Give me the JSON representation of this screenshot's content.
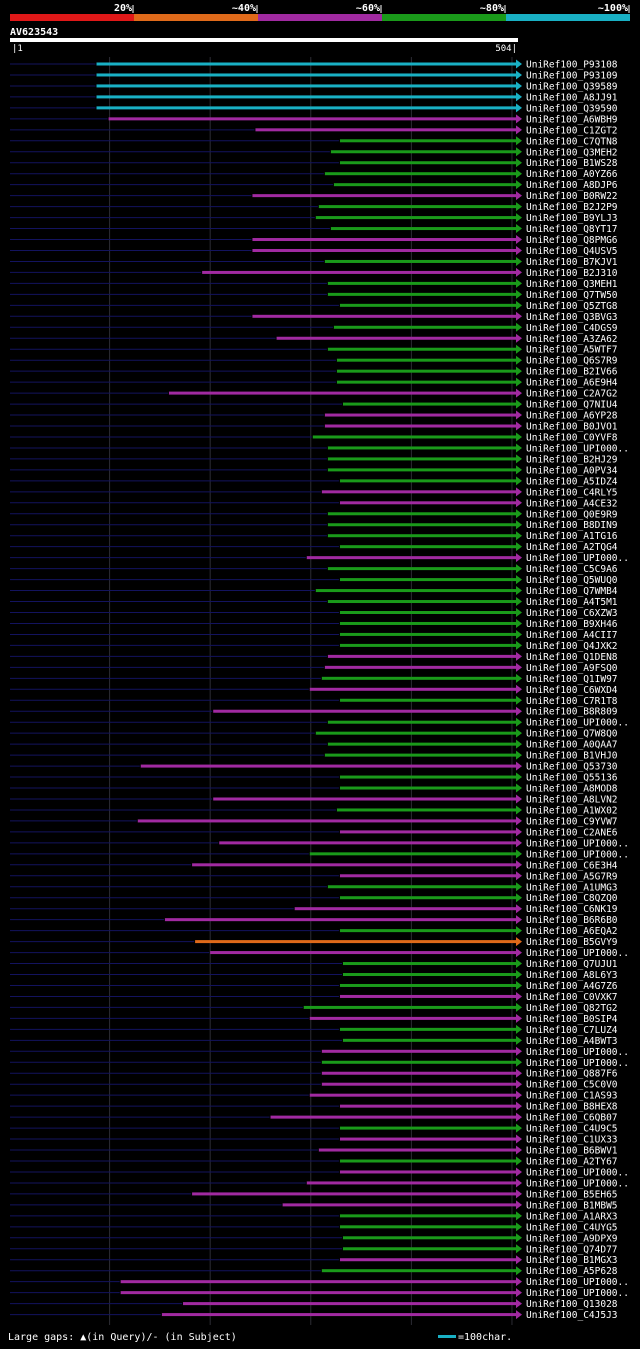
{
  "chart_data": {
    "type": "alignment-overview",
    "query_id": "AV623543",
    "axis": {
      "start": 1,
      "end": 504
    },
    "legend": {
      "ticks": [
        "20%",
        "~40%",
        "~60%",
        "~80%",
        "~100%"
      ],
      "colors": [
        "#e01818",
        "#e06a1a",
        "#a12aa1",
        "#1a9a1a",
        "#19b0c4"
      ]
    },
    "footer": {
      "gaps": "Large gaps: ▲(in Query)/- (in Subject)",
      "scale": "=100char."
    },
    "hits": [
      {
        "name": "UniRef100_P93108",
        "start": 87,
        "cov": "~100%"
      },
      {
        "name": "UniRef100_P93109",
        "start": 87,
        "cov": "~100%"
      },
      {
        "name": "UniRef100_Q39589",
        "start": 87,
        "cov": "~100%"
      },
      {
        "name": "UniRef100_A8JJ91",
        "start": 87,
        "cov": "~100%"
      },
      {
        "name": "UniRef100_Q39590",
        "start": 87,
        "cov": "~100%"
      },
      {
        "name": "UniRef100_A6WBH9",
        "start": 99,
        "cov": "~60%"
      },
      {
        "name": "UniRef100_C1ZGT2",
        "start": 245,
        "cov": "~60%"
      },
      {
        "name": "UniRef100_C7QTN8",
        "start": 329,
        "cov": "~80%"
      },
      {
        "name": "UniRef100_Q3MEH2",
        "start": 320,
        "cov": "~80%"
      },
      {
        "name": "UniRef100_B1WS28",
        "start": 329,
        "cov": "~80%"
      },
      {
        "name": "UniRef100_A0YZ66",
        "start": 314,
        "cov": "~80%"
      },
      {
        "name": "UniRef100_A8DJP6",
        "start": 323,
        "cov": "~80%"
      },
      {
        "name": "UniRef100_B0RW22",
        "start": 242,
        "cov": "~60%"
      },
      {
        "name": "UniRef100_B2J2P9",
        "start": 308,
        "cov": "~80%"
      },
      {
        "name": "UniRef100_B9YLJ3",
        "start": 305,
        "cov": "~80%"
      },
      {
        "name": "UniRef100_Q8YT17",
        "start": 320,
        "cov": "~80%"
      },
      {
        "name": "UniRef100_Q8PMG6",
        "start": 242,
        "cov": "~60%"
      },
      {
        "name": "UniRef100_Q4USV5",
        "start": 242,
        "cov": "~60%"
      },
      {
        "name": "UniRef100_B7KJV1",
        "start": 314,
        "cov": "~80%"
      },
      {
        "name": "UniRef100_B2J310",
        "start": 192,
        "cov": "~60%"
      },
      {
        "name": "UniRef100_Q3MEH1",
        "start": 317,
        "cov": "~80%"
      },
      {
        "name": "UniRef100_Q7TW50",
        "start": 317,
        "cov": "~80%"
      },
      {
        "name": "UniRef100_Q5ZTG8",
        "start": 329,
        "cov": "~80%"
      },
      {
        "name": "UniRef100_Q3BVG3",
        "start": 242,
        "cov": "~60%"
      },
      {
        "name": "UniRef100_C4DGS9",
        "start": 323,
        "cov": "~80%"
      },
      {
        "name": "UniRef100_A3ZA62",
        "start": 266,
        "cov": "~60%"
      },
      {
        "name": "UniRef100_A5WTF7",
        "start": 317,
        "cov": "~80%"
      },
      {
        "name": "UniRef100_Q6S7R9",
        "start": 326,
        "cov": "~80%"
      },
      {
        "name": "UniRef100_B2IV66",
        "start": 326,
        "cov": "~80%"
      },
      {
        "name": "UniRef100_A6E9H4",
        "start": 326,
        "cov": "~80%"
      },
      {
        "name": "UniRef100_C2A7G2",
        "start": 159,
        "cov": "~60%"
      },
      {
        "name": "UniRef100_Q7NIU4",
        "start": 332,
        "cov": "~80%"
      },
      {
        "name": "UniRef100_A6YP28",
        "start": 314,
        "cov": "~60%"
      },
      {
        "name": "UniRef100_B0JVO1",
        "start": 314,
        "cov": "~60%"
      },
      {
        "name": "UniRef100_C0YVF8",
        "start": 302,
        "cov": "~80%"
      },
      {
        "name": "UniRef100_UPI000..",
        "start": 317,
        "cov": "~80%"
      },
      {
        "name": "UniRef100_B2HJ29",
        "start": 317,
        "cov": "~80%"
      },
      {
        "name": "UniRef100_A0PV34",
        "start": 317,
        "cov": "~80%"
      },
      {
        "name": "UniRef100_A5IDZ4",
        "start": 329,
        "cov": "~80%"
      },
      {
        "name": "UniRef100_C4RLY5",
        "start": 311,
        "cov": "~60%"
      },
      {
        "name": "UniRef100_A4CE32",
        "start": 329,
        "cov": "~60%"
      },
      {
        "name": "UniRef100_Q0E9R9",
        "start": 317,
        "cov": "~80%"
      },
      {
        "name": "UniRef100_B8DIN9",
        "start": 317,
        "cov": "~80%"
      },
      {
        "name": "UniRef100_A1TG16",
        "start": 317,
        "cov": "~80%"
      },
      {
        "name": "UniRef100_A2TQG4",
        "start": 329,
        "cov": "~80%"
      },
      {
        "name": "UniRef100_UPI000..",
        "start": 296,
        "cov": "~60%"
      },
      {
        "name": "UniRef100_C5C9A6",
        "start": 317,
        "cov": "~80%"
      },
      {
        "name": "UniRef100_Q5WUQ0",
        "start": 329,
        "cov": "~80%"
      },
      {
        "name": "UniRef100_Q7WMB4",
        "start": 305,
        "cov": "~80%"
      },
      {
        "name": "UniRef100_A4T5M1",
        "start": 317,
        "cov": "~80%"
      },
      {
        "name": "UniRef100_C6XZW3",
        "start": 329,
        "cov": "~80%"
      },
      {
        "name": "UniRef100_B9XH46",
        "start": 329,
        "cov": "~80%"
      },
      {
        "name": "UniRef100_A4CII7",
        "start": 329,
        "cov": "~80%"
      },
      {
        "name": "UniRef100_Q4JXK2",
        "start": 329,
        "cov": "~80%"
      },
      {
        "name": "UniRef100_Q1DEN8",
        "start": 317,
        "cov": "~60%"
      },
      {
        "name": "UniRef100_A9FSQ0",
        "start": 314,
        "cov": "~60%"
      },
      {
        "name": "UniRef100_Q1IW97",
        "start": 311,
        "cov": "~80%"
      },
      {
        "name": "UniRef100_C6WXD4",
        "start": 299,
        "cov": "~60%"
      },
      {
        "name": "UniRef100_C7R1T8",
        "start": 329,
        "cov": "~80%"
      },
      {
        "name": "UniRef100_B8R809",
        "start": 203,
        "cov": "~60%"
      },
      {
        "name": "UniRef100_UPI000..",
        "start": 317,
        "cov": "~80%"
      },
      {
        "name": "UniRef100_Q7W8Q0",
        "start": 305,
        "cov": "~80%"
      },
      {
        "name": "UniRef100_A0QAA7",
        "start": 317,
        "cov": "~80%"
      },
      {
        "name": "UniRef100_B1VHJ0",
        "start": 314,
        "cov": "~80%"
      },
      {
        "name": "UniRef100_Q53730",
        "start": 131,
        "cov": "~60%"
      },
      {
        "name": "UniRef100_Q55136",
        "start": 329,
        "cov": "~80%"
      },
      {
        "name": "UniRef100_A8MOD8",
        "start": 329,
        "cov": "~80%"
      },
      {
        "name": "UniRef100_A8LVN2",
        "start": 203,
        "cov": "~60%"
      },
      {
        "name": "UniRef100_A1WX02",
        "start": 326,
        "cov": "~80%"
      },
      {
        "name": "UniRef100_C9YVW7",
        "start": 128,
        "cov": "~60%"
      },
      {
        "name": "UniRef100_C2ANE6",
        "start": 329,
        "cov": "~60%"
      },
      {
        "name": "UniRef100_UPI000..",
        "start": 209,
        "cov": "~60%"
      },
      {
        "name": "UniRef100_UPI000..",
        "start": 299,
        "cov": "~80%"
      },
      {
        "name": "UniRef100_C6E3H4",
        "start": 182,
        "cov": "~60%"
      },
      {
        "name": "UniRef100_A5G7R9",
        "start": 329,
        "cov": "~60%"
      },
      {
        "name": "UniRef100_A1UMG3",
        "start": 317,
        "cov": "~80%"
      },
      {
        "name": "UniRef100_C8QZQ0",
        "start": 329,
        "cov": "~80%"
      },
      {
        "name": "UniRef100_C6NK19",
        "start": 284,
        "cov": "~60%"
      },
      {
        "name": "UniRef100_B6R6B0",
        "start": 155,
        "cov": "~60%"
      },
      {
        "name": "UniRef100_A6EQA2",
        "start": 329,
        "cov": "~80%"
      },
      {
        "name": "UniRef100_B5GVY9",
        "start": 185,
        "cov": "~40%"
      },
      {
        "name": "UniRef100_UPI000..",
        "start": 200,
        "cov": "~60%"
      },
      {
        "name": "UniRef100_Q7UJU1",
        "start": 332,
        "cov": "~80%"
      },
      {
        "name": "UniRef100_A8L6Y3",
        "start": 332,
        "cov": "~80%"
      },
      {
        "name": "UniRef100_A4G7Z6",
        "start": 329,
        "cov": "~80%"
      },
      {
        "name": "UniRef100_C0VXK7",
        "start": 329,
        "cov": "~60%"
      },
      {
        "name": "UniRef100_Q82TG2",
        "start": 293,
        "cov": "~80%"
      },
      {
        "name": "UniRef100_B0SIP4",
        "start": 299,
        "cov": "~60%"
      },
      {
        "name": "UniRef100_C7LUZ4",
        "start": 329,
        "cov": "~80%"
      },
      {
        "name": "UniRef100_A4BWT3",
        "start": 332,
        "cov": "~80%"
      },
      {
        "name": "UniRef100_UPI000..",
        "start": 311,
        "cov": "~60%"
      },
      {
        "name": "UniRef100_UPI000..",
        "start": 311,
        "cov": "~80%"
      },
      {
        "name": "UniRef100_Q887F6",
        "start": 311,
        "cov": "~60%"
      },
      {
        "name": "UniRef100_C5C0V0",
        "start": 311,
        "cov": "~60%"
      },
      {
        "name": "UniRef100_C1AS93",
        "start": 299,
        "cov": "~60%"
      },
      {
        "name": "UniRef100_B8HEX8",
        "start": 329,
        "cov": "~60%"
      },
      {
        "name": "UniRef100_C6QB07",
        "start": 260,
        "cov": "~60%"
      },
      {
        "name": "UniRef100_C4U9C5",
        "start": 329,
        "cov": "~80%"
      },
      {
        "name": "UniRef100_C1UX33",
        "start": 329,
        "cov": "~60%"
      },
      {
        "name": "UniRef100_B6BWV1",
        "start": 308,
        "cov": "~60%"
      },
      {
        "name": "UniRef100_A2TY67",
        "start": 329,
        "cov": "~80%"
      },
      {
        "name": "UniRef100_UPI000..",
        "start": 329,
        "cov": "~60%"
      },
      {
        "name": "UniRef100_UPI000..",
        "start": 296,
        "cov": "~60%"
      },
      {
        "name": "UniRef100_B5EH65",
        "start": 182,
        "cov": "~60%"
      },
      {
        "name": "UniRef100_B1MBW5",
        "start": 272,
        "cov": "~60%"
      },
      {
        "name": "UniRef100_A1ARX3",
        "start": 329,
        "cov": "~80%"
      },
      {
        "name": "UniRef100_C4UYG5",
        "start": 329,
        "cov": "~80%"
      },
      {
        "name": "UniRef100_A9DPX9",
        "start": 332,
        "cov": "~80%"
      },
      {
        "name": "UniRef100_Q74D77",
        "start": 332,
        "cov": "~80%"
      },
      {
        "name": "UniRef100_B1MGX3",
        "start": 329,
        "cov": "~60%"
      },
      {
        "name": "UniRef100_A5P628",
        "start": 311,
        "cov": "~80%"
      },
      {
        "name": "UniRef100_UPI000..",
        "start": 111,
        "cov": "~60%"
      },
      {
        "name": "UniRef100_UPI000..",
        "start": 111,
        "cov": "~60%"
      },
      {
        "name": "UniRef100_Q13028",
        "start": 173,
        "cov": "~60%"
      },
      {
        "name": "UniRef100_C4J5J3",
        "start": 152,
        "cov": "~60%"
      }
    ]
  }
}
